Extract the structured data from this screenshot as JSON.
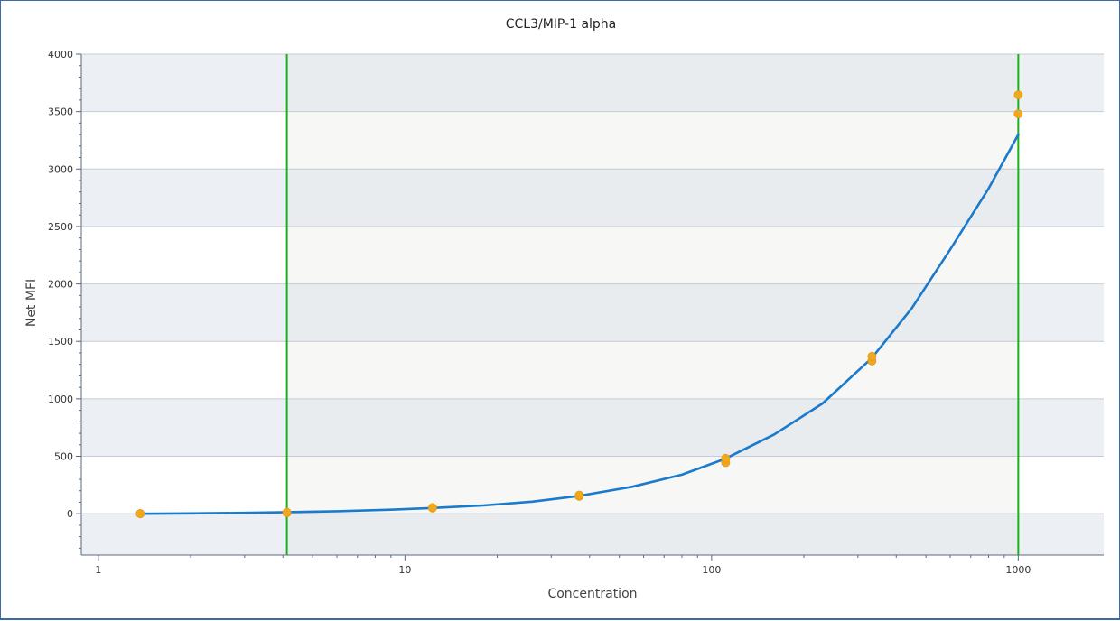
{
  "chart_data": {
    "type": "scatter",
    "title": "CCL3/MIP-1 alpha",
    "xlabel": "Concentration",
    "ylabel": "Net MFI",
    "x_scale": "log",
    "xlim": [
      0.88,
      1900
    ],
    "ylim": [
      -360,
      4000
    ],
    "x_ticks": [
      1,
      10,
      100,
      1000
    ],
    "x_tick_labels": [
      "1",
      "10",
      "100",
      "1000"
    ],
    "y_ticks": [
      0,
      500,
      1000,
      1500,
      2000,
      2500,
      3000,
      3500,
      4000
    ],
    "y_tick_labels": [
      "0",
      "500",
      "1000",
      "1500",
      "2000",
      "2500",
      "3000",
      "3500",
      "4000"
    ],
    "grid": true,
    "band_colors": [
      "#ecf0f4",
      "#ffffff"
    ],
    "range_band_colors": [
      "#e8ecef",
      "#f7f7f5"
    ],
    "series": [
      {
        "type": "scatter",
        "color": "#f0a81e",
        "points": [
          [
            1.37,
            0
          ],
          [
            1.37,
            2
          ],
          [
            4.12,
            8
          ],
          [
            4.12,
            12
          ],
          [
            12.3,
            50
          ],
          [
            12.3,
            53
          ],
          [
            37.0,
            152
          ],
          [
            37.0,
            162
          ],
          [
            111.1,
            445
          ],
          [
            111.1,
            482
          ],
          [
            333.3,
            1330
          ],
          [
            333.3,
            1370
          ],
          [
            1000,
            3480
          ],
          [
            1000,
            3645
          ]
        ]
      },
      {
        "type": "line",
        "color": "#1a7acb",
        "x": [
          1.37,
          2,
          3,
          4.12,
          6,
          9,
          12.3,
          18,
          26,
          37,
          55,
          80,
          111,
          160,
          230,
          333,
          450,
          600,
          800,
          1000
        ],
        "y": [
          0,
          3,
          8,
          14,
          22,
          35,
          50,
          72,
          105,
          155,
          235,
          340,
          480,
          690,
          960,
          1355,
          1790,
          2300,
          2830,
          3300
        ]
      }
    ],
    "vertical_lines": {
      "color": "#1ab01a",
      "x": [
        4.12,
        1000
      ]
    }
  }
}
